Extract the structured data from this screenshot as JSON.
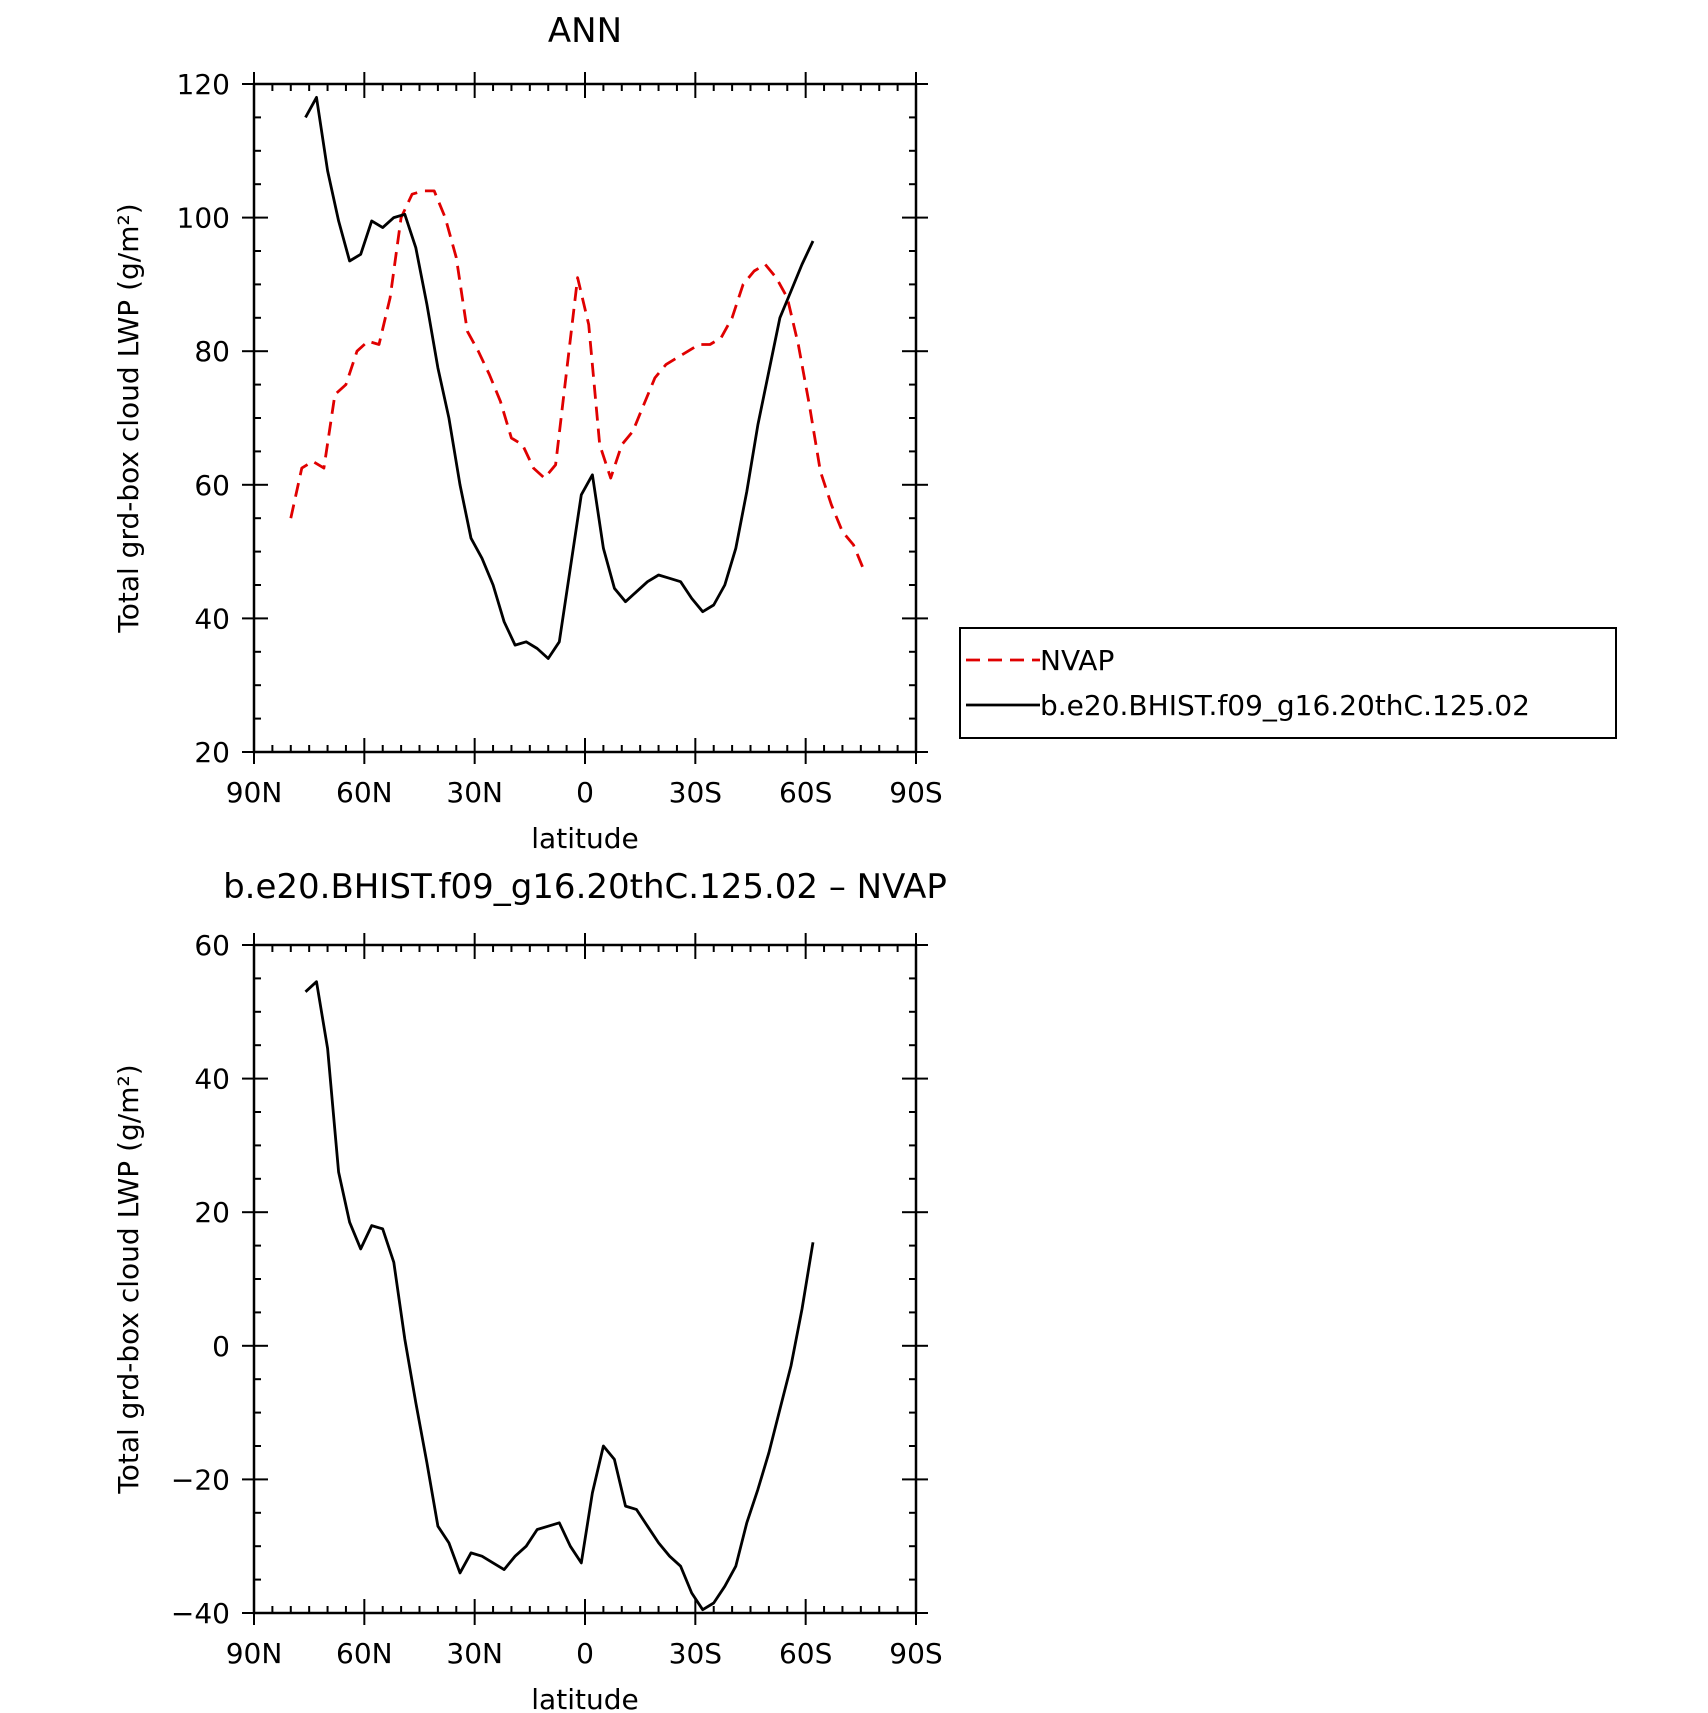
{
  "chart_data": [
    {
      "type": "line",
      "title": "ANN",
      "xlabel": "latitude",
      "ylabel": "Total grd-box cloud LWP (g/m²)",
      "xlim": [
        90,
        -90
      ],
      "ylim": [
        20,
        120
      ],
      "x_ticks": [
        90,
        60,
        30,
        0,
        -30,
        -60,
        -90
      ],
      "x_tick_labels": [
        "90N",
        "60N",
        "30N",
        "0",
        "30S",
        "60S",
        "90S"
      ],
      "y_ticks": [
        20,
        40,
        60,
        80,
        100,
        120
      ],
      "y_tick_labels": [
        "20",
        "40",
        "60",
        "80",
        "100",
        "120"
      ],
      "legend_placement": "right",
      "series": [
        {
          "name": "NVAP",
          "color": "#e00000",
          "style": "dashed",
          "x": [
            80,
            77,
            74,
            71,
            68,
            65,
            62,
            59,
            56,
            53,
            50,
            47,
            44,
            41,
            38,
            35,
            32,
            29,
            26,
            23,
            20,
            17,
            14,
            11,
            8,
            5,
            2,
            -1,
            -4,
            -7,
            -10,
            -13,
            -16,
            -19,
            -22,
            -25,
            -28,
            -31,
            -34,
            -37,
            -40,
            -43,
            -46,
            -49,
            -52,
            -55,
            -58,
            -61,
            -64,
            -67,
            -70,
            -73,
            -76
          ],
          "y": [
            55,
            62.5,
            63.5,
            62.5,
            73.5,
            75,
            80,
            81.5,
            81,
            88,
            100,
            103.5,
            104,
            104,
            100,
            94,
            83,
            80,
            76.5,
            72.5,
            67,
            66,
            62.5,
            61,
            63,
            77,
            91,
            84,
            66,
            61,
            66,
            68,
            72,
            76,
            78,
            79,
            80,
            81,
            81,
            82,
            85,
            90,
            92,
            93,
            91,
            88,
            81,
            72,
            62,
            57,
            53,
            51,
            47
          ]
        },
        {
          "name": "b.e20.BHIST.f09_g16.20thC.125.02",
          "color": "#000000",
          "style": "solid",
          "x": [
            76,
            73,
            70,
            67,
            64,
            61,
            58,
            55,
            52,
            49,
            46,
            43,
            40,
            37,
            34,
            31,
            28,
            25,
            22,
            19,
            16,
            13,
            10,
            7,
            4,
            1,
            -2,
            -5,
            -8,
            -11,
            -14,
            -17,
            -20,
            -23,
            -26,
            -29,
            -32,
            -35,
            -38,
            -41,
            -44,
            -47,
            -50,
            -53,
            -56,
            -59,
            -62
          ],
          "y": [
            115,
            118,
            107,
            99.5,
            93.5,
            94.5,
            99.5,
            98.5,
            100,
            100.5,
            95.5,
            87,
            77.5,
            70,
            60,
            52,
            49,
            45,
            39.5,
            36,
            36.5,
            35.5,
            34,
            36.5,
            47.5,
            58.5,
            61.5,
            50.5,
            44.5,
            42.5,
            44,
            45.5,
            46.5,
            46,
            45.5,
            43,
            41,
            42,
            45,
            50.5,
            59,
            69,
            77,
            85,
            89,
            93,
            96.5
          ]
        }
      ]
    },
    {
      "type": "line",
      "title": "b.e20.BHIST.f09_g16.20thC.125.02 – NVAP",
      "xlabel": "latitude",
      "ylabel": "Total grd-box cloud LWP (g/m²)",
      "xlim": [
        90,
        -90
      ],
      "ylim": [
        -40,
        60
      ],
      "x_ticks": [
        90,
        60,
        30,
        0,
        -30,
        -60,
        -90
      ],
      "x_tick_labels": [
        "90N",
        "60N",
        "30N",
        "0",
        "30S",
        "60S",
        "90S"
      ],
      "y_ticks": [
        -40,
        -20,
        0,
        20,
        40,
        60
      ],
      "y_tick_labels": [
        "−40",
        "−20",
        "0",
        "20",
        "40",
        "60"
      ],
      "series": [
        {
          "color": "#000000",
          "style": "solid",
          "x": [
            76,
            73,
            70,
            67,
            64,
            61,
            58,
            55,
            52,
            49,
            46,
            43,
            40,
            37,
            34,
            31,
            28,
            25,
            22,
            19,
            16,
            13,
            10,
            7,
            4,
            1,
            -2,
            -5,
            -8,
            -11,
            -14,
            -17,
            -20,
            -23,
            -26,
            -29,
            -32,
            -35,
            -38,
            -41,
            -44,
            -47,
            -50,
            -53,
            -56,
            -59,
            -62
          ],
          "y": [
            53,
            54.5,
            44.5,
            26,
            18.5,
            14.5,
            18,
            17.5,
            12.5,
            1,
            -8.5,
            -17.5,
            -27,
            -29.5,
            -34,
            -31,
            -31.5,
            -32.5,
            -33.5,
            -31.5,
            -30,
            -27.5,
            -27,
            -26.5,
            -30,
            -32.5,
            -22,
            -15,
            -17,
            -24,
            -24.5,
            -27,
            -29.5,
            -31.5,
            -33,
            -37,
            -39.5,
            -38.5,
            -36,
            -33,
            -26.5,
            -21.5,
            -16,
            -9.5,
            -3,
            5.5,
            15.5
          ]
        }
      ]
    }
  ]
}
